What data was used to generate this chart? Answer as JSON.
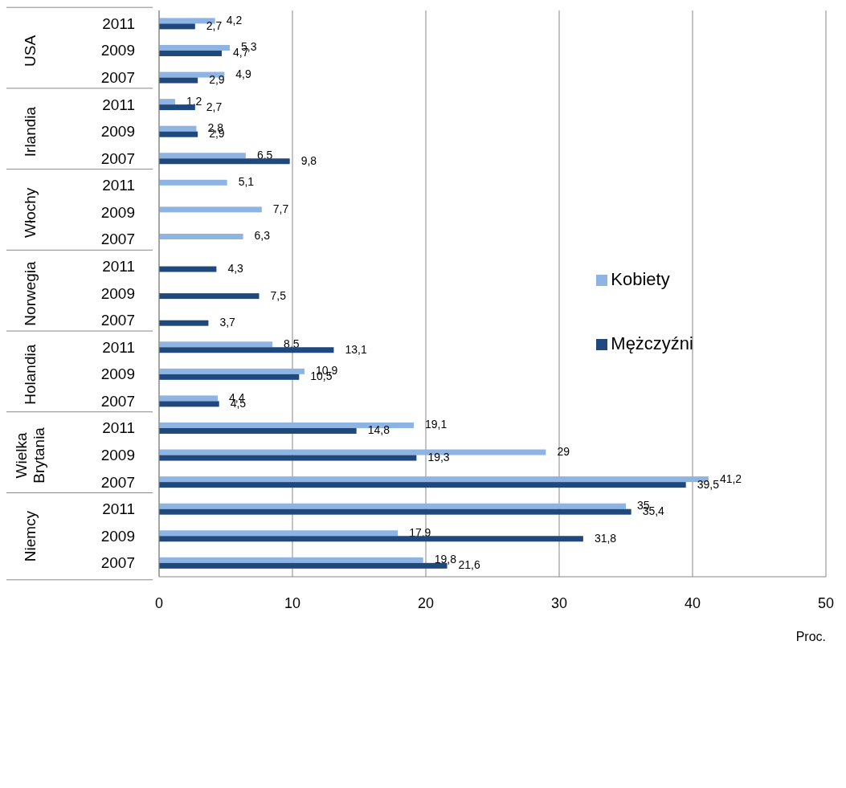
{
  "chart_data": {
    "type": "bar",
    "orientation": "horizontal",
    "xlabel": "Proc.",
    "categories": [
      "2011",
      "2009",
      "2007",
      "2011",
      "2009",
      "2007",
      "2011",
      "2009",
      "2007",
      "2011",
      "2009",
      "2007",
      "2011",
      "2009",
      "2007",
      "2011",
      "2009",
      "2007",
      "2011",
      "2009",
      "2007"
    ],
    "annotations": [
      "USA",
      "Irlandia",
      "Włochy",
      "Norwegia",
      "Holandia",
      "Wielka Brytania",
      "Niemcy"
    ],
    "series": [
      {
        "name": "Kobiety",
        "color": "#8eb4e3",
        "values": [
          4.2,
          5.3,
          4.9,
          1.2,
          2.8,
          6.5,
          5.1,
          7.7,
          6.3,
          null,
          null,
          null,
          8.5,
          10.9,
          4.4,
          19.1,
          29,
          41.2,
          35,
          17.9,
          19.8
        ],
        "value_labels": [
          "4,2",
          "5,3",
          "4,9",
          "1,2",
          "2,8",
          "6,5",
          "5,1",
          "7,7",
          "6,3",
          null,
          null,
          null,
          "8,5",
          "10,9",
          "4,4",
          "19,1",
          "29",
          "41,2",
          "35",
          "17,9",
          "19,8"
        ]
      },
      {
        "name": "Mężczyźni",
        "color": "#1f497d",
        "values": [
          2.7,
          4.7,
          2.9,
          2.7,
          2.9,
          9.8,
          null,
          null,
          null,
          4.3,
          7.5,
          3.7,
          13.1,
          10.5,
          4.5,
          14.8,
          19.3,
          39.5,
          35.4,
          31.8,
          21.6
        ],
        "value_labels": [
          "2,7",
          "4,7",
          "2,9",
          "2,7",
          "2,9",
          "9,8",
          null,
          null,
          null,
          "4,3",
          "7,5",
          "3,7",
          "13,1",
          "10,5",
          "4,5",
          "14,8",
          "19,3",
          "39,5",
          "35,4",
          "31,8",
          "21,6"
        ]
      }
    ],
    "xlim": [
      0,
      50
    ],
    "xticks": [
      0,
      10,
      20,
      30,
      40,
      50
    ],
    "grid": "x",
    "legend": "right"
  }
}
